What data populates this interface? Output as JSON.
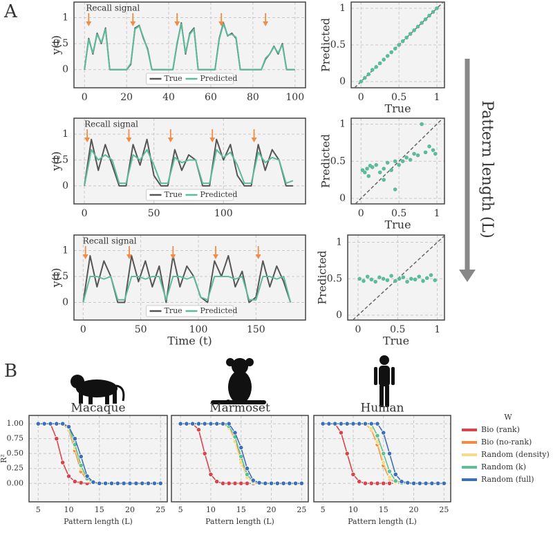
{
  "figure": {
    "panels": [
      "A",
      "B"
    ],
    "arrow_label": "Pattern length (L)"
  },
  "chart_data": [
    {
      "type": "line",
      "y_label": "y(t)",
      "xlim": [
        -5,
        105
      ],
      "ylim": [
        -0.35,
        1.3
      ],
      "xticks": [
        0,
        20,
        40,
        60,
        80,
        100
      ],
      "yticks": [
        0,
        0.5,
        1
      ],
      "grid": true,
      "legend": "lower center",
      "annotation": {
        "text": "Recall signal",
        "color": "#f28c45",
        "x": [
          2,
          23,
          44,
          65,
          86
        ]
      },
      "x": [
        0,
        2,
        4,
        6,
        8,
        10,
        12,
        14,
        16,
        18,
        20,
        22,
        24,
        26,
        28,
        30,
        32,
        34,
        36,
        38,
        40,
        42,
        44,
        46,
        48,
        50,
        52,
        54,
        56,
        58,
        60,
        62,
        64,
        66,
        68,
        70,
        72,
        74,
        76,
        78,
        80,
        82,
        84,
        86,
        88,
        90,
        92,
        94,
        96,
        98,
        100
      ],
      "series": [
        {
          "name": "True",
          "color": "#555555",
          "values": [
            0,
            0.6,
            0.3,
            0.7,
            0.5,
            0.8,
            0,
            0,
            0,
            0,
            0,
            0.1,
            0.8,
            0.85,
            0.6,
            0.4,
            0,
            0,
            0,
            0,
            0,
            0,
            0.5,
            0.9,
            0.3,
            0.7,
            0.8,
            0,
            0,
            0,
            0,
            0,
            0.6,
            0.9,
            0.65,
            0.7,
            0.6,
            0,
            0,
            0,
            0,
            0,
            0,
            0.2,
            0.3,
            0.45,
            0.3,
            0.5,
            0,
            0,
            0
          ]
        },
        {
          "name": "Predicted",
          "color": "#5dbb9a",
          "values": [
            0,
            0.58,
            0.32,
            0.68,
            0.52,
            0.78,
            0,
            0,
            0,
            0,
            0,
            0.12,
            0.78,
            0.84,
            0.62,
            0.38,
            0,
            0,
            0,
            0,
            0,
            0,
            0.52,
            0.88,
            0.32,
            0.68,
            0.78,
            0,
            0,
            0,
            0,
            0,
            0.58,
            0.88,
            0.66,
            0.68,
            0.62,
            0,
            0,
            0,
            0,
            0,
            0,
            0.22,
            0.3,
            0.44,
            0.32,
            0.48,
            0,
            0,
            0
          ]
        }
      ]
    },
    {
      "type": "scatter",
      "x_label": "True",
      "y_label": "Predicted",
      "xlim": [
        -0.13,
        1.1
      ],
      "ylim": [
        -0.085,
        1.085
      ],
      "xticks": [
        0,
        0.5,
        1
      ],
      "yticks": [
        0,
        0.5,
        1
      ],
      "grid": true,
      "diagonal": true,
      "color": "#5dbb9a",
      "x": [
        0,
        0.05,
        0.1,
        0.15,
        0.2,
        0.25,
        0.3,
        0.35,
        0.4,
        0.45,
        0.5,
        0.55,
        0.6,
        0.65,
        0.7,
        0.75,
        0.8,
        0.85,
        0.9,
        0.95,
        1
      ],
      "values": [
        0,
        0.05,
        0.1,
        0.16,
        0.2,
        0.25,
        0.3,
        0.35,
        0.4,
        0.45,
        0.5,
        0.55,
        0.6,
        0.65,
        0.7,
        0.75,
        0.8,
        0.85,
        0.9,
        0.95,
        1
      ]
    },
    {
      "type": "line",
      "y_label": "y(t)",
      "xlim": [
        -7.5,
        159
      ],
      "ylim": [
        -0.35,
        1.31
      ],
      "xticks": [
        0,
        50,
        100
      ],
      "yticks": [
        0,
        0.5,
        1
      ],
      "grid": true,
      "legend": "lower center",
      "annotation": {
        "text": "Recall signal",
        "color": "#f28c45",
        "x": [
          2,
          32,
          62,
          92,
          122
        ]
      },
      "x": [
        0,
        5,
        10,
        15,
        20,
        25,
        30,
        35,
        40,
        45,
        50,
        55,
        60,
        65,
        70,
        75,
        80,
        85,
        90,
        95,
        100,
        105,
        110,
        115,
        120,
        125,
        130,
        135,
        140,
        145,
        150
      ],
      "series": [
        {
          "name": "True",
          "color": "#555555",
          "values": [
            0,
            0.9,
            0.3,
            0.8,
            0.4,
            0,
            0,
            0.8,
            0.4,
            0.9,
            0.2,
            0,
            0,
            0.7,
            0.3,
            0.6,
            0.5,
            0,
            0,
            0.9,
            0.5,
            0.8,
            0.2,
            0,
            0,
            0.8,
            0.3,
            0.7,
            0.5,
            0,
            0
          ]
        },
        {
          "name": "Predicted",
          "color": "#5dbb9a",
          "values": [
            0,
            0.7,
            0.5,
            0.6,
            0.5,
            0.05,
            0.05,
            0.6,
            0.5,
            0.7,
            0.4,
            0.05,
            0.05,
            0.55,
            0.45,
            0.5,
            0.5,
            0.05,
            0.05,
            0.7,
            0.55,
            0.65,
            0.4,
            0.05,
            0.05,
            0.65,
            0.45,
            0.55,
            0.5,
            0.05,
            0.1
          ]
        }
      ]
    },
    {
      "type": "scatter",
      "x_label": "True",
      "y_label": "Predicted",
      "xlim": [
        -0.13,
        1.1
      ],
      "ylim": [
        -0.075,
        1.08
      ],
      "xticks": [
        0,
        0.5,
        1
      ],
      "yticks": [
        0,
        0.5,
        1
      ],
      "grid": true,
      "diagonal": true,
      "color": "#5dbb9a",
      "x": [
        0.02,
        0.05,
        0.08,
        0.1,
        0.15,
        0.2,
        0.25,
        0.3,
        0.35,
        0.4,
        0.45,
        0.5,
        0.55,
        0.6,
        0.65,
        0.7,
        0.75,
        0.8,
        0.85,
        0.9,
        0.95,
        0.98,
        0.45,
        0.3,
        0.12
      ],
      "values": [
        0.38,
        0.35,
        0.4,
        0.3,
        0.42,
        0.45,
        0.35,
        0.4,
        0.48,
        0.38,
        0.12,
        0.45,
        0.5,
        0.55,
        0.52,
        0.6,
        0.58,
        1.0,
        0.62,
        0.7,
        0.65,
        0.6,
        0.5,
        0.25,
        0.44
      ]
    },
    {
      "type": "line",
      "x_label": "Time (t)",
      "y_label": "y(t)",
      "xlim": [
        -8,
        193
      ],
      "ylim": [
        -0.34,
        1.3
      ],
      "xticks": [
        0,
        50,
        100,
        150
      ],
      "yticks": [
        0,
        0.5,
        1
      ],
      "grid": true,
      "legend": "lower center",
      "annotation": {
        "text": "Recall signal",
        "color": "#f28c45",
        "x": [
          2,
          40,
          78,
          115,
          152
        ]
      },
      "x": [
        0,
        6,
        12,
        18,
        24,
        30,
        36,
        42,
        48,
        54,
        60,
        66,
        72,
        78,
        84,
        90,
        96,
        102,
        108,
        114,
        120,
        126,
        132,
        138,
        144,
        150,
        156,
        162,
        168,
        174,
        180
      ],
      "series": [
        {
          "name": "True",
          "color": "#555555",
          "values": [
            0,
            0.9,
            0.3,
            0.8,
            0.5,
            0,
            0,
            0.9,
            0.4,
            0.8,
            0.3,
            0.7,
            0,
            0.9,
            0.3,
            0.7,
            0.5,
            0.1,
            0,
            0.8,
            0.5,
            0.9,
            0.3,
            0.6,
            0,
            0.1,
            0.8,
            0.3,
            0.7,
            0.4,
            0
          ]
        },
        {
          "name": "Predicted",
          "color": "#5dbb9a",
          "values": [
            0,
            0.5,
            0.5,
            0.45,
            0.5,
            0.05,
            0.05,
            0.5,
            0.5,
            0.45,
            0.5,
            0.5,
            0.05,
            0.5,
            0.5,
            0.45,
            0.5,
            0.1,
            0.05,
            0.5,
            0.5,
            0.5,
            0.45,
            0.5,
            0.05,
            0.05,
            0.5,
            0.5,
            0.45,
            0.5,
            0
          ]
        }
      ]
    },
    {
      "type": "scatter",
      "x_label": "True",
      "y_label": "Predicted",
      "xlim": [
        -0.13,
        1.09
      ],
      "ylim": [
        -0.066,
        1.1
      ],
      "xticks": [
        0,
        0.5,
        1
      ],
      "yticks": [
        0,
        0.5,
        1
      ],
      "grid": true,
      "diagonal": true,
      "color": "#5dbb9a",
      "x": [
        0.02,
        0.07,
        0.12,
        0.17,
        0.22,
        0.27,
        0.32,
        0.37,
        0.42,
        0.47,
        0.52,
        0.57,
        0.62,
        0.67,
        0.72,
        0.77,
        0.82,
        0.87,
        0.92,
        0.97
      ],
      "values": [
        0.5,
        0.47,
        0.53,
        0.49,
        0.46,
        0.52,
        0.5,
        0.48,
        0.54,
        0.47,
        0.5,
        0.52,
        0.46,
        0.5,
        0.49,
        0.53,
        0.47,
        0.51,
        0.55,
        0.48
      ]
    },
    {
      "type": "line",
      "title": "Macaque",
      "x_label": "Pattern length (L)",
      "y_label": "R²",
      "xlim": [
        3.5,
        26.1
      ],
      "ylim": [
        -0.31,
        1.14
      ],
      "xticks": [
        5,
        10,
        15,
        20,
        25
      ],
      "yticks": [
        {
          "value": 0,
          "label": "0.00"
        },
        {
          "value": 0.25,
          "label": "0.25"
        },
        {
          "value": 0.5,
          "label": "0.50"
        },
        {
          "value": 0.75,
          "label": "0.75"
        },
        {
          "value": 1,
          "label": "1.00"
        }
      ],
      "grid": true,
      "markers": true,
      "legend": "outside right",
      "legend_title": "W",
      "x": [
        5,
        6,
        7,
        8,
        9,
        10,
        11,
        12,
        13,
        14,
        15,
        16,
        17,
        18,
        19,
        20,
        21,
        22,
        23,
        24,
        25
      ],
      "series": [
        {
          "name": "Bio (rank)",
          "color": "#d9434b",
          "values": [
            1,
            1,
            1,
            0.75,
            0.35,
            0.12,
            0.03,
            0.01,
            0,
            0,
            0,
            0,
            0,
            0,
            0,
            0,
            0,
            0,
            0,
            0,
            0
          ]
        },
        {
          "name": "Bio (no-rank)",
          "color": "#f28c45",
          "values": [
            1,
            1,
            1,
            1,
            1,
            0.9,
            0.55,
            0.2,
            0.05,
            0.01,
            0,
            0,
            0,
            0,
            0,
            0,
            0,
            0,
            0,
            0,
            0
          ]
        },
        {
          "name": "Random (density)",
          "color": "#f3dd8a",
          "values": [
            1,
            1,
            1,
            1,
            1,
            0.92,
            0.6,
            0.25,
            0.06,
            0.01,
            0,
            0,
            0,
            0,
            0,
            0,
            0,
            0,
            0,
            0,
            0
          ]
        },
        {
          "name": "Random (k)",
          "color": "#5fbf94",
          "values": [
            1,
            1,
            1,
            1,
            1,
            0.95,
            0.65,
            0.3,
            0.08,
            0.02,
            0,
            0,
            0,
            0,
            0,
            0,
            0,
            0,
            0,
            0,
            0
          ]
        },
        {
          "name": "Random (full)",
          "color": "#3c6fb5",
          "values": [
            1,
            1,
            1,
            1,
            1,
            0.95,
            0.75,
            0.45,
            0.12,
            0.02,
            0,
            0,
            0,
            0,
            0,
            0,
            0,
            0,
            0,
            0,
            0
          ]
        }
      ]
    },
    {
      "type": "line",
      "title": "Marmoset",
      "x_label": "Pattern length (L)",
      "xlim": [
        3.5,
        26.1
      ],
      "ylim": [
        -0.31,
        1.14
      ],
      "xticks": [
        5,
        10,
        15,
        20,
        25
      ],
      "yticks": [
        0,
        0.25,
        0.5,
        0.75,
        1
      ],
      "ytick_labels": false,
      "grid": true,
      "markers": true,
      "x": [
        5,
        6,
        7,
        8,
        9,
        10,
        11,
        12,
        13,
        14,
        15,
        16,
        17,
        18,
        19,
        20,
        21,
        22,
        23,
        24,
        25
      ],
      "series": [
        {
          "color": "#d9434b",
          "values": [
            1,
            1,
            1,
            0.9,
            0.5,
            0.15,
            0.03,
            0,
            0,
            0,
            0,
            0,
            0,
            0,
            0,
            0,
            0,
            0,
            0,
            0,
            0
          ]
        },
        {
          "color": "#f28c45",
          "values": [
            1,
            1,
            1,
            1,
            1,
            1,
            1,
            1,
            0.95,
            0.75,
            0.4,
            0.12,
            0.02,
            0,
            0,
            0,
            0,
            0,
            0,
            0,
            0
          ]
        },
        {
          "color": "#f3dd8a",
          "values": [
            1,
            1,
            1,
            1,
            1,
            1,
            1,
            1,
            0.93,
            0.7,
            0.35,
            0.1,
            0.02,
            0,
            0,
            0,
            0,
            0,
            0,
            0,
            0
          ]
        },
        {
          "color": "#5fbf94",
          "values": [
            1,
            1,
            1,
            1,
            1,
            1,
            1,
            1,
            0.96,
            0.78,
            0.45,
            0.15,
            0.03,
            0,
            0,
            0,
            0,
            0,
            0,
            0,
            0
          ]
        },
        {
          "color": "#3c6fb5",
          "values": [
            1,
            1,
            1,
            1,
            1,
            1,
            1,
            1,
            1,
            0.85,
            0.6,
            0.25,
            0.05,
            0.01,
            0,
            0,
            0,
            0,
            0,
            0,
            0
          ]
        }
      ]
    },
    {
      "type": "line",
      "title": "Human",
      "x_label": "Pattern length (L)",
      "xlim": [
        3.5,
        26.1
      ],
      "ylim": [
        -0.31,
        1.14
      ],
      "xticks": [
        5,
        10,
        15,
        20,
        25
      ],
      "yticks": [
        0,
        0.25,
        0.5,
        0.75,
        1
      ],
      "ytick_labels": false,
      "grid": true,
      "markers": true,
      "x": [
        5,
        6,
        7,
        8,
        9,
        10,
        11,
        12,
        13,
        14,
        15,
        16,
        17,
        18,
        19,
        20,
        21,
        22,
        23,
        24,
        25
      ],
      "series": [
        {
          "color": "#d9434b",
          "values": [
            1,
            1,
            1,
            0.85,
            0.5,
            0.15,
            0.03,
            0,
            0,
            0,
            0,
            0,
            0,
            0,
            0,
            0,
            0,
            0,
            0,
            0,
            0
          ]
        },
        {
          "color": "#f28c45",
          "values": [
            1,
            1,
            1,
            1,
            1,
            1,
            1,
            1,
            0.9,
            0.65,
            0.3,
            0.08,
            0.01,
            0,
            0,
            0,
            0,
            0,
            0,
            0,
            0
          ]
        },
        {
          "color": "#f3dd8a",
          "values": [
            1,
            1,
            1,
            1,
            1,
            1,
            1,
            1,
            0.92,
            0.7,
            0.35,
            0.1,
            0.02,
            0,
            0,
            0,
            0,
            0,
            0,
            0,
            0
          ]
        },
        {
          "color": "#5fbf94",
          "values": [
            1,
            1,
            1,
            1,
            1,
            1,
            1,
            1,
            1,
            0.8,
            0.5,
            0.2,
            0.04,
            0.01,
            0,
            0,
            0,
            0,
            0,
            0,
            0
          ]
        },
        {
          "color": "#3c6fb5",
          "values": [
            1,
            1,
            1,
            1,
            1,
            1,
            1,
            1,
            1,
            1,
            0.85,
            0.5,
            0.15,
            0.03,
            0.01,
            0,
            0,
            0,
            0,
            0,
            0
          ]
        }
      ]
    }
  ]
}
